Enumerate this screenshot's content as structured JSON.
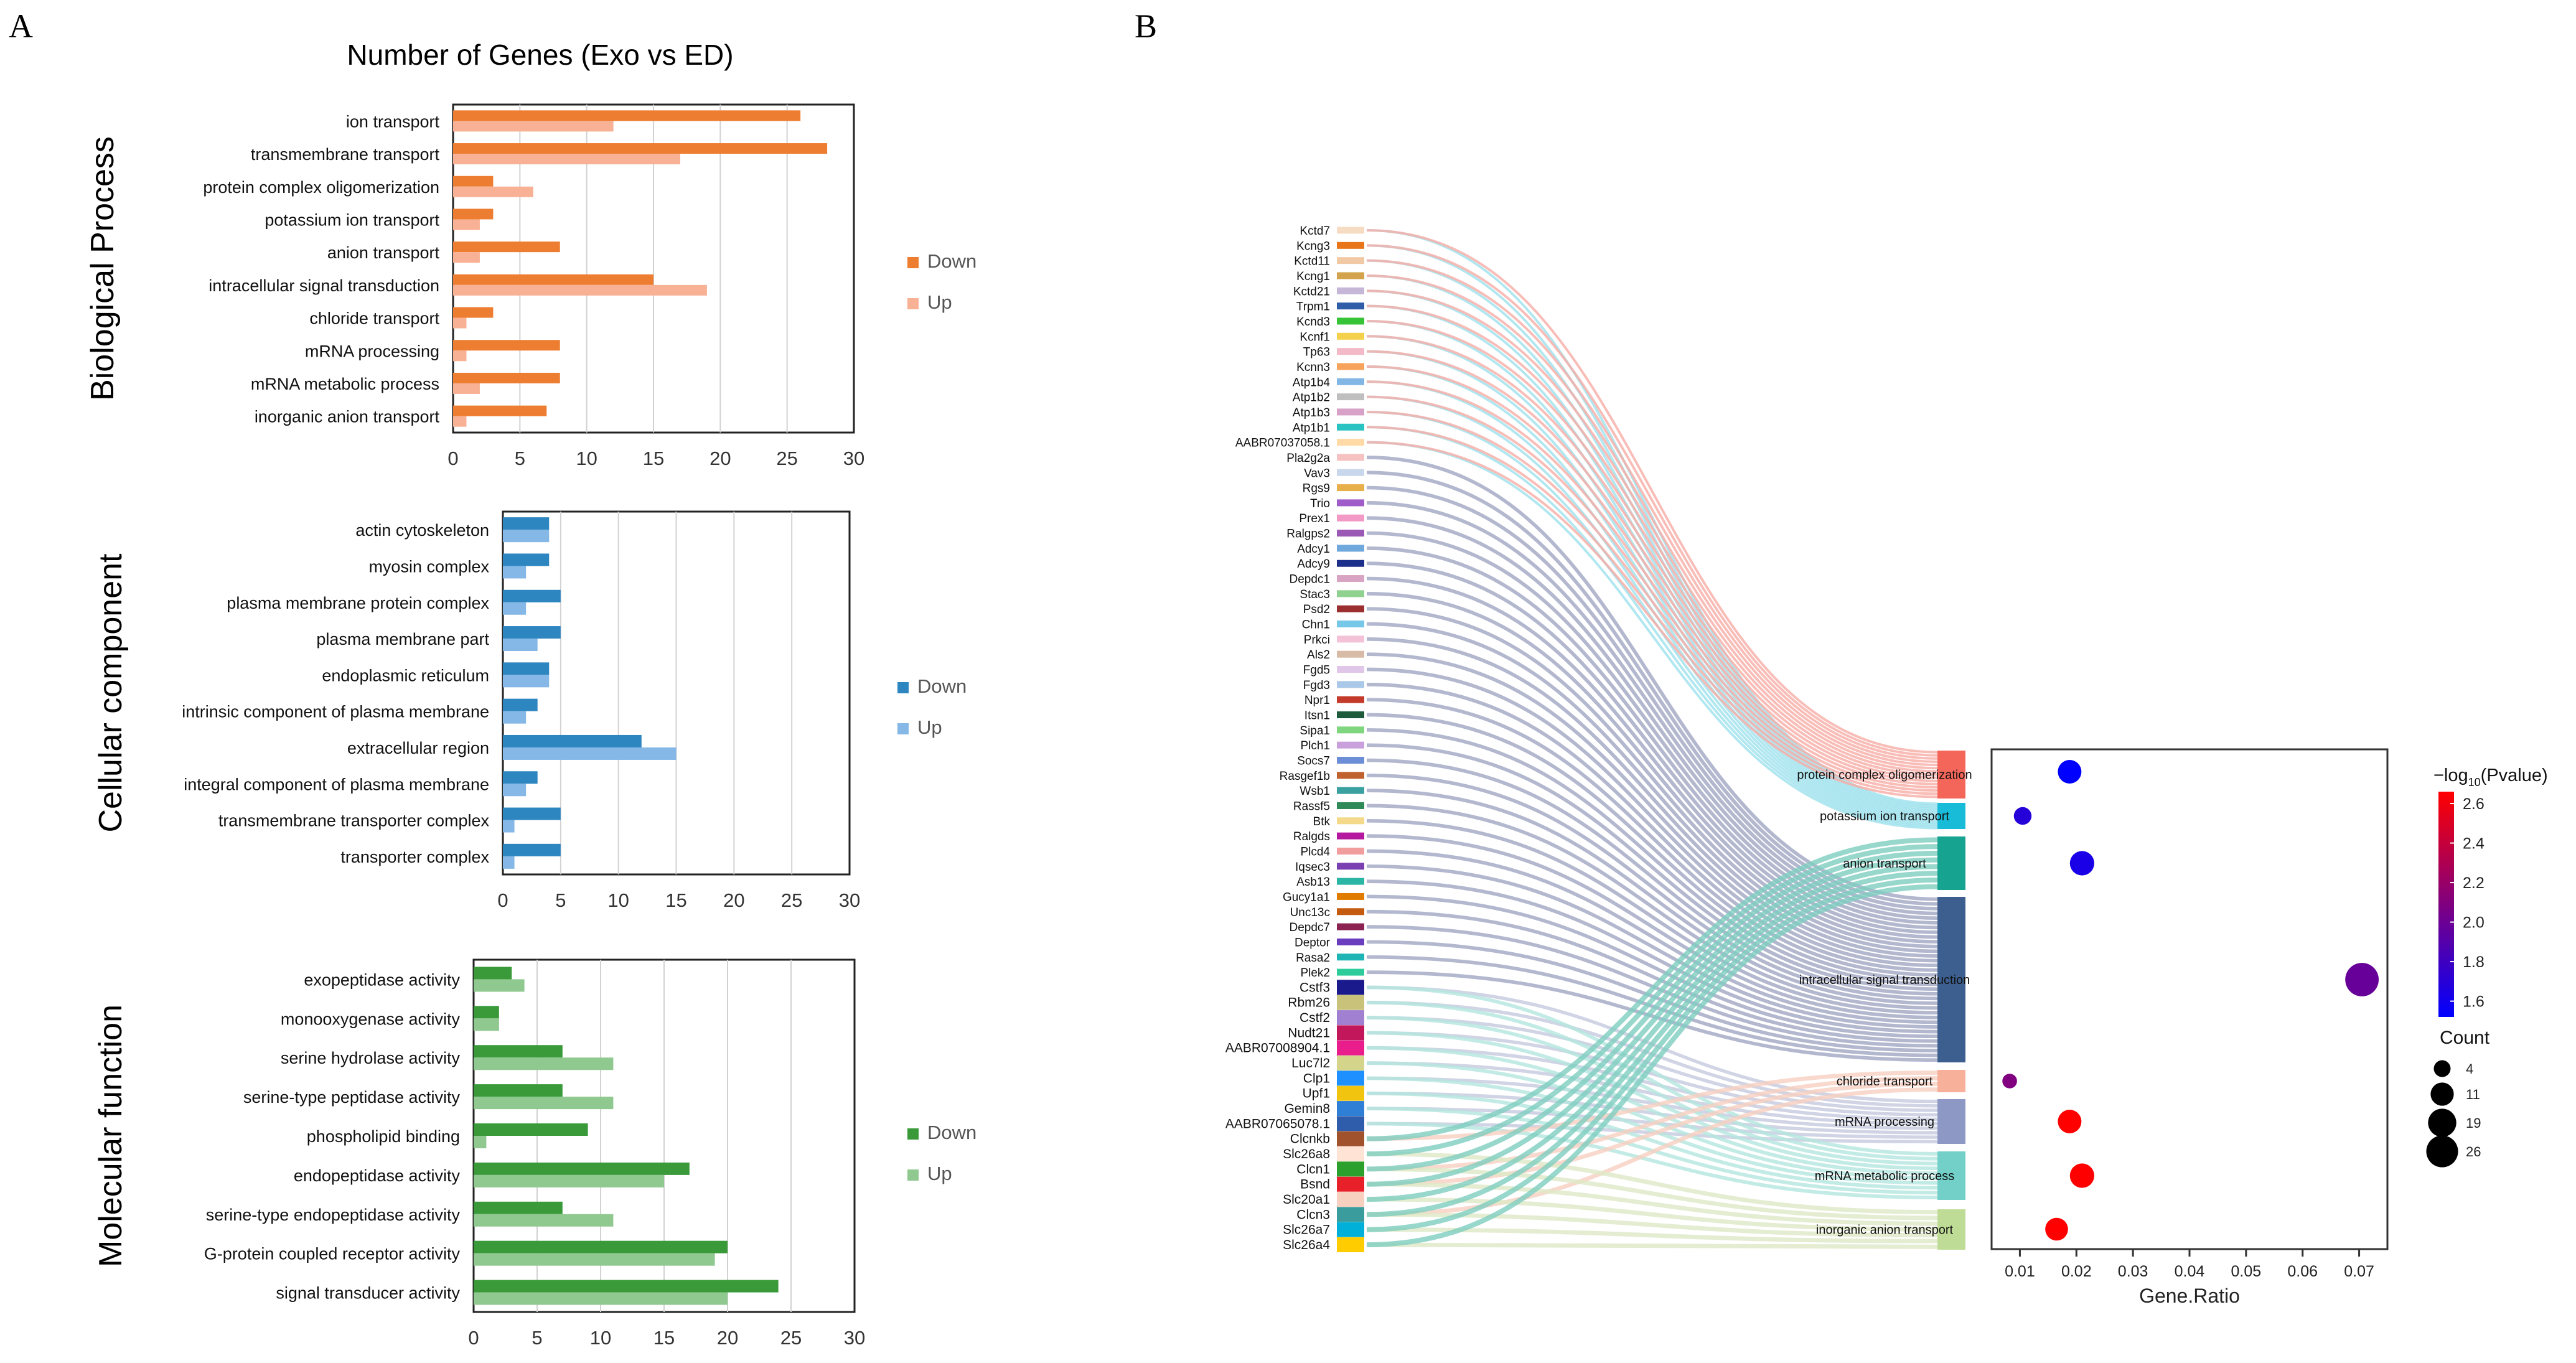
{
  "panels": {
    "a": "A",
    "b": "B"
  },
  "chart_data": [
    {
      "type": "bar",
      "orientation": "horizontal",
      "title": "Number of Genes (Exo vs ED)",
      "ylabel": "Biological Process",
      "categories": [
        "ion transport",
        "transmembrane transport",
        "protein complex oligomerization",
        "potassium ion transport",
        "anion transport",
        "intracellular signal transduction",
        "chloride transport",
        "mRNA processing",
        "mRNA metabolic process",
        "inorganic anion transport"
      ],
      "series": [
        {
          "name": "Down",
          "color": "#ed7d31",
          "values": [
            26,
            28,
            3,
            3,
            8,
            15,
            3,
            8,
            8,
            7
          ]
        },
        {
          "name": "Up",
          "color": "#f8b195",
          "values": [
            12,
            17,
            6,
            2,
            2,
            19,
            1,
            1,
            2,
            1
          ]
        }
      ],
      "xlim": [
        0,
        30
      ],
      "xticks": [
        0,
        5,
        10,
        15,
        20,
        25,
        30
      ]
    },
    {
      "type": "bar",
      "orientation": "horizontal",
      "ylabel": "Cellular component",
      "categories": [
        "actin cytoskeleton",
        "myosin complex",
        "plasma membrane protein complex",
        "plasma membrane part",
        "endoplasmic reticulum",
        "intrinsic component of plasma membrane",
        "extracellular region",
        "integral component of plasma membrane",
        "transmembrane transporter complex",
        "transporter complex"
      ],
      "series": [
        {
          "name": "Down",
          "color": "#2e86c1",
          "values": [
            4,
            4,
            5,
            5,
            4,
            3,
            12,
            3,
            5,
            5
          ]
        },
        {
          "name": "Up",
          "color": "#85b8e6",
          "values": [
            4,
            2,
            2,
            3,
            4,
            2,
            15,
            2,
            1,
            1
          ]
        }
      ],
      "xlim": [
        0,
        30
      ],
      "xticks": [
        0,
        5,
        10,
        15,
        20,
        25,
        30
      ]
    },
    {
      "type": "bar",
      "orientation": "horizontal",
      "ylabel": "Molecular function",
      "categories": [
        "exopeptidase activity",
        "monooxygenase activity",
        "serine hydrolase activity",
        "serine-type peptidase activity",
        "phospholipid binding",
        "endopeptidase activity",
        "serine-type endopeptidase activity",
        "G-protein coupled receptor activity",
        "signal transducer activity"
      ],
      "series": [
        {
          "name": "Down",
          "color": "#3a9a3a",
          "values": [
            3,
            2,
            7,
            7,
            9,
            17,
            7,
            20,
            24
          ]
        },
        {
          "name": "Up",
          "color": "#8fc98f",
          "values": [
            4,
            2,
            11,
            11,
            1,
            15,
            11,
            19,
            20
          ]
        }
      ],
      "xlim": [
        0,
        30
      ],
      "xticks": [
        0,
        5,
        10,
        15,
        20,
        25,
        30
      ]
    },
    {
      "type": "scatter",
      "xlabel": "Gene.Ratio",
      "xlim": [
        0.005,
        0.075
      ],
      "xticks": [
        0.01,
        0.02,
        0.03,
        0.04,
        0.05,
        0.06,
        0.07
      ],
      "xtick_labels": [
        "0.01",
        "0.02",
        "0.03",
        "0.04",
        "0.05",
        "0.06",
        "0.07"
      ],
      "categories": [
        "protein complex oligomerization",
        "potassium ion transport",
        "anion transport",
        "intracellular signal transduction",
        "chloride transport",
        "mRNA processing",
        "mRNA metabolic process",
        "inorganic anion transport"
      ],
      "points": [
        {
          "term": "protein complex oligomerization",
          "gene_ratio": 0.0188,
          "neglog10p": 1.6,
          "count": 10
        },
        {
          "term": "potassium ion transport",
          "gene_ratio": 0.0105,
          "neglog10p": 1.75,
          "count": 4
        },
        {
          "term": "anion transport",
          "gene_ratio": 0.021,
          "neglog10p": 1.7,
          "count": 11
        },
        {
          "term": "intracellular signal transduction",
          "gene_ratio": 0.0705,
          "neglog10p": 2.0,
          "count": 26
        },
        {
          "term": "chloride transport",
          "gene_ratio": 0.0082,
          "neglog10p": 2.1,
          "count": 2
        },
        {
          "term": "mRNA processing",
          "gene_ratio": 0.0188,
          "neglog10p": 2.6,
          "count": 10
        },
        {
          "term": "mRNA metabolic process",
          "gene_ratio": 0.021,
          "neglog10p": 2.6,
          "count": 11
        },
        {
          "term": "inorganic anion transport",
          "gene_ratio": 0.0165,
          "neglog10p": 2.6,
          "count": 9
        }
      ],
      "color_legend": {
        "title_prefix": "−log",
        "title_sub": "10",
        "title_suffix": "(Pvalue)",
        "ticks": [
          2.6,
          2.4,
          2.2,
          2.0,
          1.8,
          1.6
        ],
        "tick_labels": [
          "2.6",
          "2.4",
          "2.2",
          "2.0",
          "1.8",
          "1.6"
        ],
        "low_color": "#0000ff",
        "high_color": "#ff0000"
      },
      "size_legend": {
        "title": "Count",
        "values": [
          4,
          11,
          19,
          26
        ],
        "labels": [
          "4",
          "11",
          "19",
          "26"
        ]
      }
    },
    {
      "type": "sankey",
      "genes": [
        "Kctd7",
        "Kcng3",
        "Kctd11",
        "Kcng1",
        "Kctd21",
        "Trpm1",
        "Kcnd3",
        "Kcnf1",
        "Tp63",
        "Kcnn3",
        "Atp1b4",
        "Atp1b2",
        "Atp1b3",
        "Atp1b1",
        "AABR07037058.1",
        "Pla2g2a",
        "Vav3",
        "Rgs9",
        "Trio",
        "Prex1",
        "Ralgps2",
        "Adcy1",
        "Adcy9",
        "Depdc1",
        "Stac3",
        "Psd2",
        "Chn1",
        "Prkci",
        "Als2",
        "Fgd5",
        "Fgd3",
        "Npr1",
        "Itsn1",
        "Sipa1",
        "Plch1",
        "Socs7",
        "Rasgef1b",
        "Wsb1",
        "Rassf5",
        "Btk",
        "Ralgds",
        "Plcd4",
        "Iqsec3",
        "Asb13",
        "Gucy1a1",
        "Unc13c",
        "Depdc7",
        "Deptor",
        "Rasa2",
        "Plek2",
        "Cstf3",
        "Rbm26",
        "Cstf2",
        "Nudt21",
        "AABR07008904.1",
        "Luc7l2",
        "Clp1",
        "Upf1",
        "Gemin8",
        "AABR07065078.1",
        "Clcnkb",
        "Slc26a8",
        "Clcn1",
        "Bsnd",
        "Slc20a1",
        "Clcn3",
        "Slc26a7",
        "Slc26a4"
      ],
      "gene_colors": [
        "#f7dcc4",
        "#e8751a",
        "#f2c9a5",
        "#d2a24c",
        "#c6b7d9",
        "#2f5da8",
        "#36c436",
        "#f4d04b",
        "#f3b9c6",
        "#f7a35c",
        "#82b7e5",
        "#bfbfbf",
        "#d8a2c8",
        "#2bc2c2",
        "#ffd9a6",
        "#f6c1c1",
        "#c9d7ec",
        "#e8b04a",
        "#a05cc9",
        "#f29ac5",
        "#9b59b6",
        "#6fa8dc",
        "#1c2f8a",
        "#d9a3c3",
        "#8fd18f",
        "#9b2f2f",
        "#76c7e8",
        "#f4c2d7",
        "#d8bba6",
        "#e0c6e8",
        "#aac8e8",
        "#c43a2a",
        "#1d5b3a",
        "#7fd67f",
        "#c9a0dc",
        "#6b8ed6",
        "#c0622f",
        "#3aa0a0",
        "#2e8b57",
        "#f5d98b",
        "#b5179e",
        "#f29d9d",
        "#7a3fb0",
        "#2ab5a5",
        "#e07b00",
        "#c55b11",
        "#8b2252",
        "#6a3dbf",
        "#1fb5b5",
        "#2ecc9a",
        "#1a1a8c",
        "#c9c27a",
        "#a17fd1",
        "#c2185b",
        "#e91e8c",
        "#d4d48a",
        "#1e90ff",
        "#f1c40f",
        "#2f7fd6",
        "#2f5dab",
        "#a0522d",
        "#ffe4d6",
        "#2ca02c",
        "#e8202a",
        "#f7d0c0",
        "#3a9c9c",
        "#00b0d8",
        "#ffcc00"
      ],
      "terms": [
        {
          "label": "protein complex oligomerization",
          "color": "#f4665a"
        },
        {
          "label": "potassium ion transport",
          "color": "#18bcd8"
        },
        {
          "label": "anion transport",
          "color": "#16a390"
        },
        {
          "label": "intracellular signal transduction",
          "color": "#3d5f8f"
        },
        {
          "label": "chloride transport",
          "color": "#f7b09a"
        },
        {
          "label": "mRNA processing",
          "color": "#8e98c4"
        },
        {
          "label": "mRNA metabolic process",
          "color": "#72d0c8"
        },
        {
          "label": "inorganic anion transport",
          "color": "#bfdc96"
        }
      ]
    }
  ]
}
